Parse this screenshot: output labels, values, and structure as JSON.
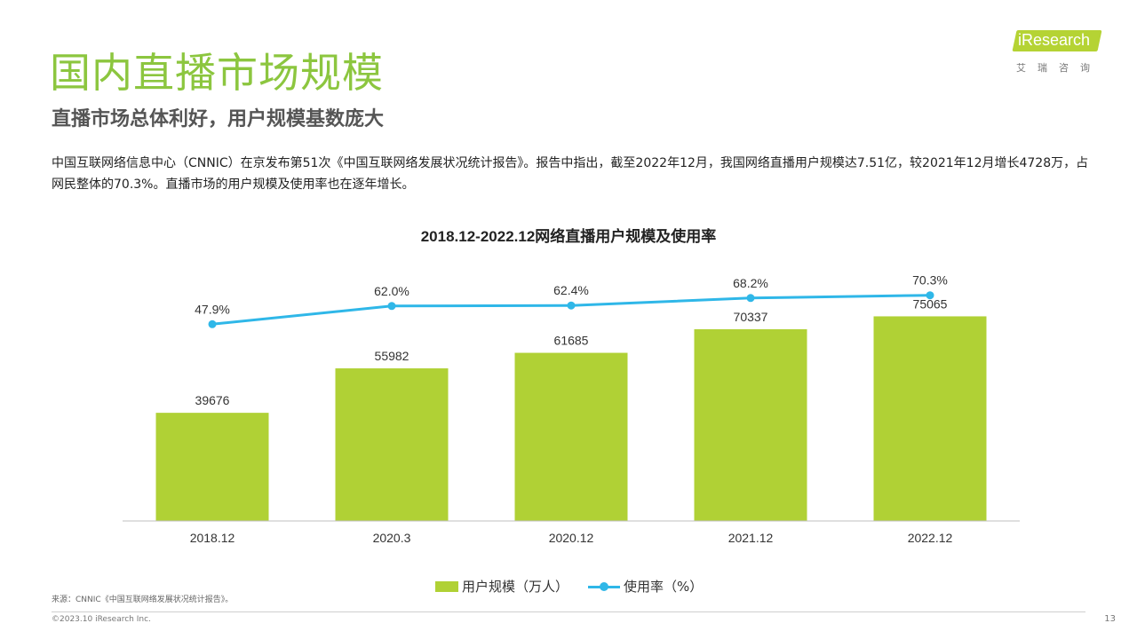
{
  "header": {
    "title": "国内直播市场规模",
    "subtitle": "直播市场总体利好，用户规模基数庞大",
    "body": "中国互联网络信息中心（CNNIC）在京发布第51次《中国互联网络发展状况统计报告》。报告中指出，截至2022年12月，我国网络直播用户规模达7.51亿，较2021年12月增长4728万，占网民整体的70.3%。直播市场的用户规模及使用率也在逐年增长。"
  },
  "logo": {
    "text": "iResearch",
    "sub": "艾瑞咨询"
  },
  "chart_data": {
    "type": "bar",
    "title": "2018.12-2022.12网络直播用户规模及使用率",
    "categories": [
      "2018.12",
      "2020.3",
      "2020.12",
      "2021.12",
      "2022.12"
    ],
    "series": [
      {
        "name": "用户规模（万人）",
        "type": "bar",
        "values": [
          39676,
          55982,
          61685,
          70337,
          75065
        ],
        "color": "#b0d135"
      },
      {
        "name": "使用率（%）",
        "type": "line",
        "values": [
          47.9,
          62.0,
          62.4,
          68.2,
          70.3
        ],
        "labels": [
          "47.9%",
          "62.0%",
          "62.4%",
          "68.2%",
          "70.3%"
        ],
        "color": "#2fb7e8"
      }
    ],
    "grid": false,
    "legend": "bottom"
  },
  "footer": {
    "source": "来源：CNNIC《中国互联网络发展状况统计报告》。",
    "copyright": "©2023.10 iResearch Inc.",
    "page": "13"
  }
}
